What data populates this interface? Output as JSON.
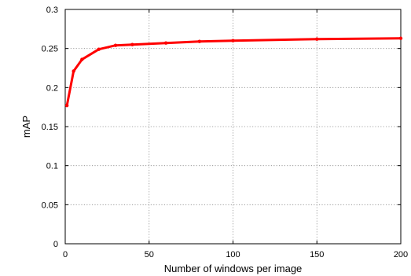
{
  "chart_data": {
    "type": "line",
    "title": "",
    "xlabel": "Number of windows per image",
    "ylabel": "mAP",
    "xlim": [
      0,
      200
    ],
    "ylim": [
      0,
      0.3
    ],
    "xticks": [
      0,
      50,
      100,
      150,
      200
    ],
    "yticks": [
      0,
      0.05,
      0.1,
      0.15,
      0.2,
      0.25,
      0.3
    ],
    "xtick_labels": [
      "0",
      "50",
      "100",
      "150",
      "200"
    ],
    "ytick_labels": [
      "0",
      "0.05",
      "0.1",
      "0.15",
      "0.2",
      "0.25",
      "0.3"
    ],
    "grid": true,
    "legend": "none",
    "series": [
      {
        "color": "#ff0000",
        "x": [
          1,
          5,
          10,
          20,
          30,
          40,
          60,
          80,
          100,
          150,
          200
        ],
        "y": [
          0.177,
          0.221,
          0.236,
          0.249,
          0.254,
          0.255,
          0.257,
          0.259,
          0.26,
          0.262,
          0.263
        ]
      }
    ]
  }
}
